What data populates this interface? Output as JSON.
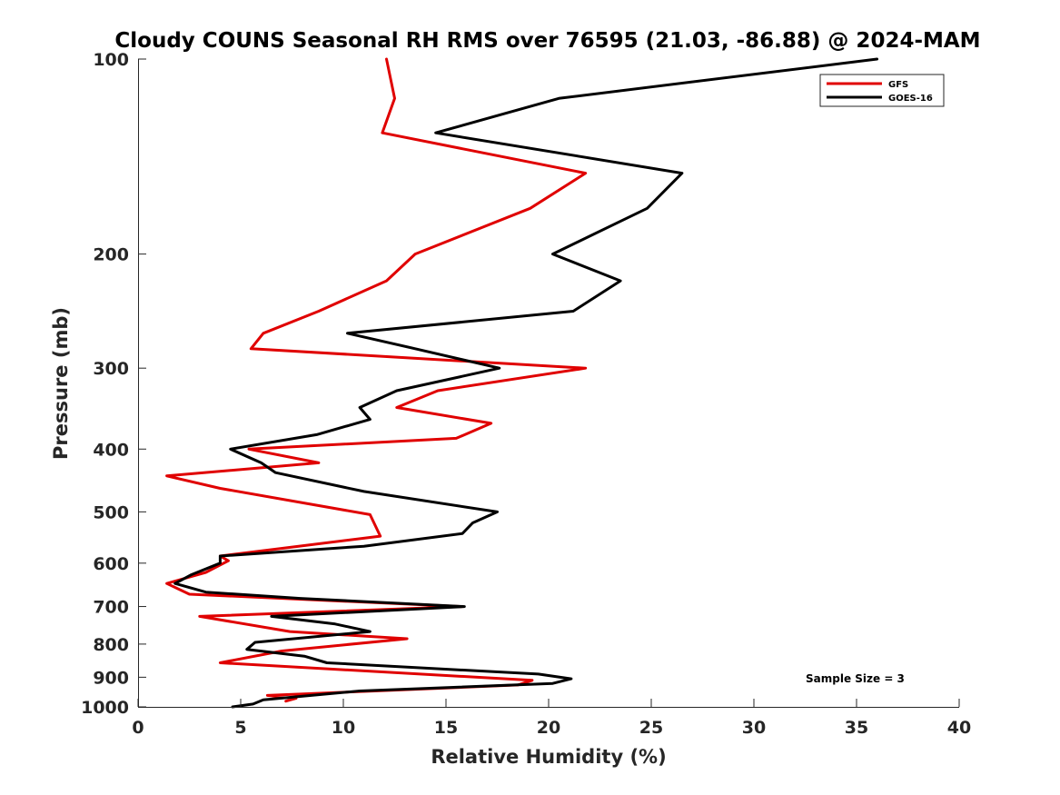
{
  "chart_data": {
    "type": "line",
    "title": "Cloudy COUNS Seasonal RH RMS over 76595 (21.03, -86.88) @ 2024-MAM",
    "xlabel": "Relative Humidity (%)",
    "ylabel": "Pressure (mb)",
    "xlim": [
      0,
      40
    ],
    "ylim": [
      100,
      1000
    ],
    "yscale": "log",
    "y_reversed": true,
    "xticks": [
      0,
      5,
      10,
      15,
      20,
      25,
      30,
      35,
      40
    ],
    "yticks": [
      100,
      200,
      300,
      400,
      500,
      600,
      700,
      800,
      900,
      1000
    ],
    "legend_position": "top-right",
    "annotation": "Sample Size = 3",
    "series": [
      {
        "name": "GFS",
        "color": "#e00000",
        "x": [
          12.1,
          12.5,
          11.9,
          21.8,
          19.1,
          13.5,
          12.1,
          8.8,
          6.1,
          5.5,
          21.8,
          14.6,
          12.6,
          17.2,
          15.5,
          5.4,
          8.8,
          1.4,
          4.0,
          11.3,
          11.8,
          4.0,
          4.4,
          3.3,
          1.4,
          2.5,
          15.8,
          3.0,
          7.4,
          13.1,
          7.0,
          4.0,
          19.2,
          18.5,
          6.3,
          7.7,
          7.2
        ],
        "y": [
          100,
          115,
          130,
          150,
          170,
          200,
          220,
          245,
          265,
          280,
          300,
          325,
          345,
          365,
          385,
          400,
          420,
          440,
          460,
          505,
          545,
          585,
          595,
          620,
          645,
          670,
          700,
          725,
          765,
          785,
          820,
          855,
          910,
          925,
          960,
          970,
          980
        ]
      },
      {
        "name": "GOES-16",
        "color": "#000000",
        "x": [
          36.0,
          20.5,
          14.5,
          26.5,
          24.8,
          20.2,
          23.5,
          21.2,
          10.2,
          13.5,
          17.6,
          12.6,
          10.8,
          11.3,
          8.7,
          4.5,
          6.0,
          6.7,
          11.0,
          17.5,
          16.3,
          15.8,
          11.0,
          4.0,
          4.0,
          2.6,
          1.8,
          3.3,
          7.9,
          15.9,
          6.5,
          9.6,
          11.3,
          5.7,
          5.3,
          8.1,
          9.2,
          19.5,
          21.1,
          20.2,
          10.8,
          6.1,
          5.6,
          4.6
        ],
        "y": [
          100,
          115,
          130,
          150,
          170,
          200,
          220,
          245,
          265,
          280,
          300,
          325,
          345,
          360,
          380,
          400,
          420,
          435,
          465,
          500,
          520,
          540,
          565,
          585,
          600,
          625,
          645,
          665,
          680,
          700,
          725,
          745,
          765,
          795,
          815,
          835,
          855,
          890,
          905,
          920,
          945,
          975,
          990,
          1000
        ]
      }
    ]
  }
}
